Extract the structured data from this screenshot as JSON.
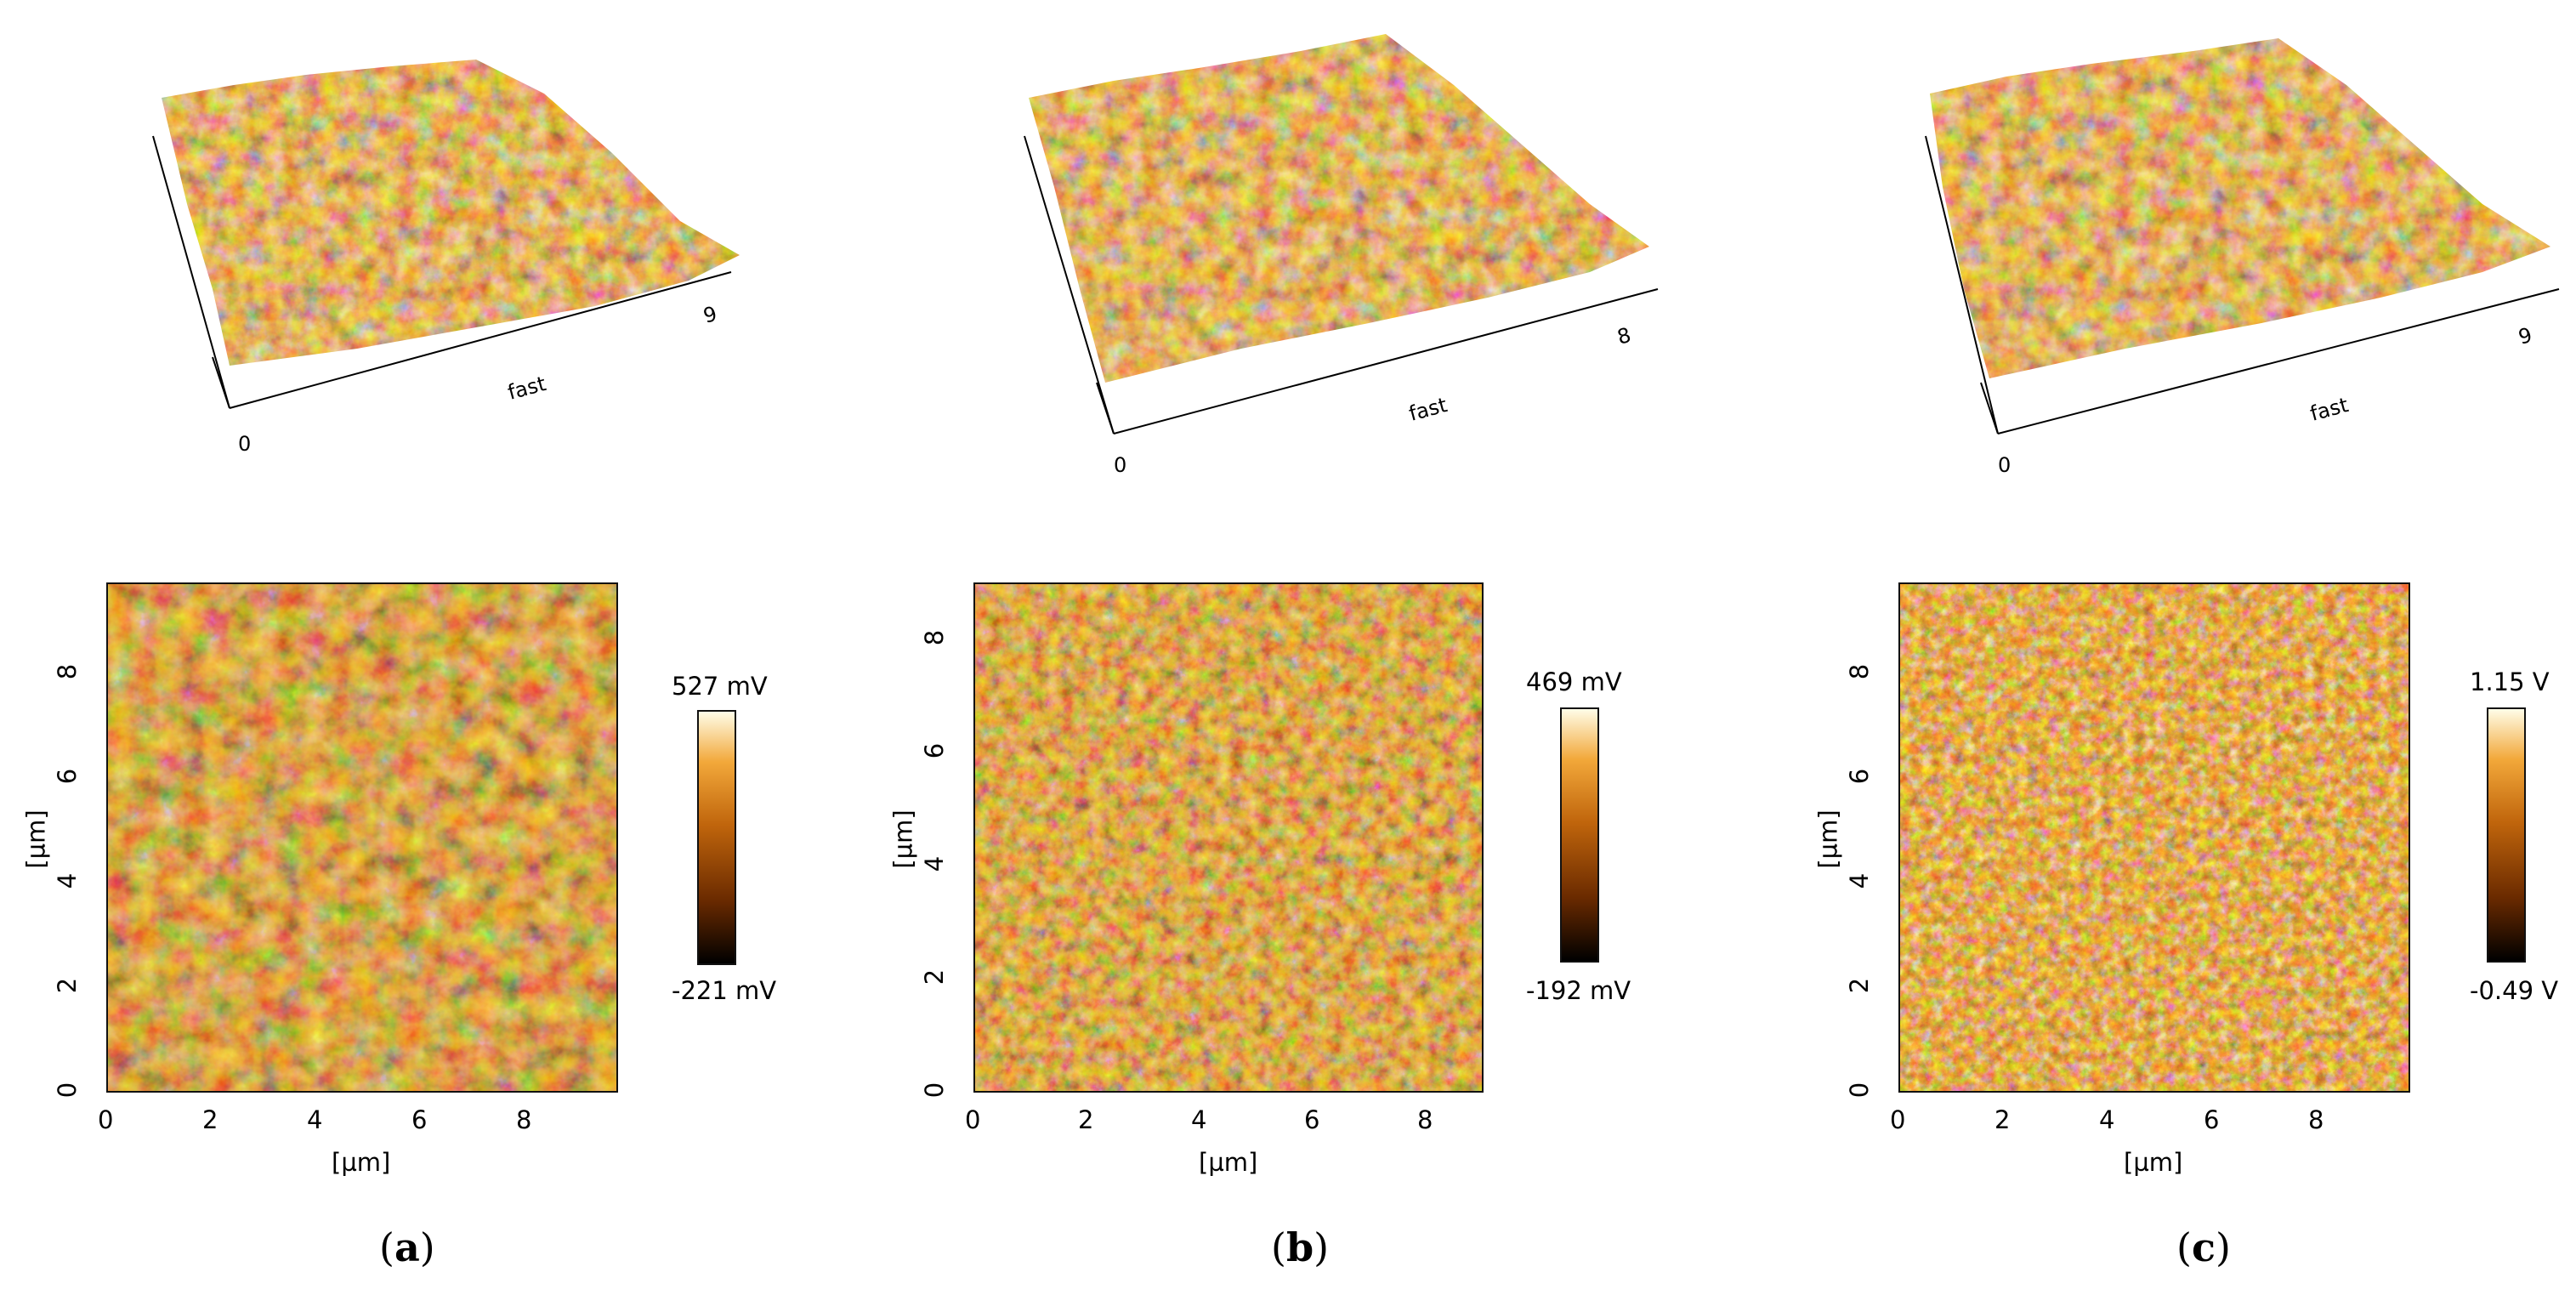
{
  "figure": {
    "panels": [
      {
        "id": "a",
        "caption_open": "(",
        "caption_letter": "a",
        "caption_close": ")",
        "surface3d": {
          "axis_label": "fast",
          "origin_tick": "0",
          "end_tick": "9"
        },
        "map": {
          "x_ticks": [
            "0",
            "2",
            "4",
            "6",
            "8"
          ],
          "y_ticks": [
            "0",
            "2",
            "4",
            "6",
            "8"
          ],
          "x_label": "[µm]",
          "y_label": "[µm]",
          "x_range_um": [
            0,
            9.8
          ],
          "y_range_um": [
            0,
            9.8
          ]
        },
        "colorbar": {
          "max_label": "527 mV",
          "min_label": "-221 mV"
        }
      },
      {
        "id": "b",
        "caption_open": "(",
        "caption_letter": "b",
        "caption_close": ")",
        "surface3d": {
          "axis_label": "fast",
          "origin_tick": "0",
          "end_tick": "8"
        },
        "map": {
          "x_ticks": [
            "0",
            "2",
            "4",
            "6",
            "8"
          ],
          "y_ticks": [
            "0",
            "2",
            "4",
            "6",
            "8"
          ],
          "x_label": "[µm]",
          "y_label": "[µm]",
          "x_range_um": [
            0,
            9.0
          ],
          "y_range_um": [
            0,
            9.0
          ]
        },
        "colorbar": {
          "max_label": "469 mV",
          "min_label": "-192 mV"
        }
      },
      {
        "id": "c",
        "caption_open": "(",
        "caption_letter": "c",
        "caption_close": ")",
        "surface3d": {
          "axis_label": "fast",
          "origin_tick": "0",
          "end_tick": "9"
        },
        "map": {
          "x_ticks": [
            "0",
            "2",
            "4",
            "6",
            "8"
          ],
          "y_ticks": [
            "0",
            "2",
            "4",
            "6",
            "8"
          ],
          "x_label": "[µm]",
          "y_label": "[µm]",
          "x_range_um": [
            0,
            9.8
          ],
          "y_range_um": [
            0,
            9.8
          ]
        },
        "colorbar": {
          "max_label": "1.15 V",
          "min_label": "-0.49 V"
        }
      }
    ],
    "colors": {
      "afm_dark": "#2a0f00",
      "afm_mid": "#b25a0c",
      "afm_light": "#e8a24a",
      "afm_white": "#fff8e0"
    }
  }
}
